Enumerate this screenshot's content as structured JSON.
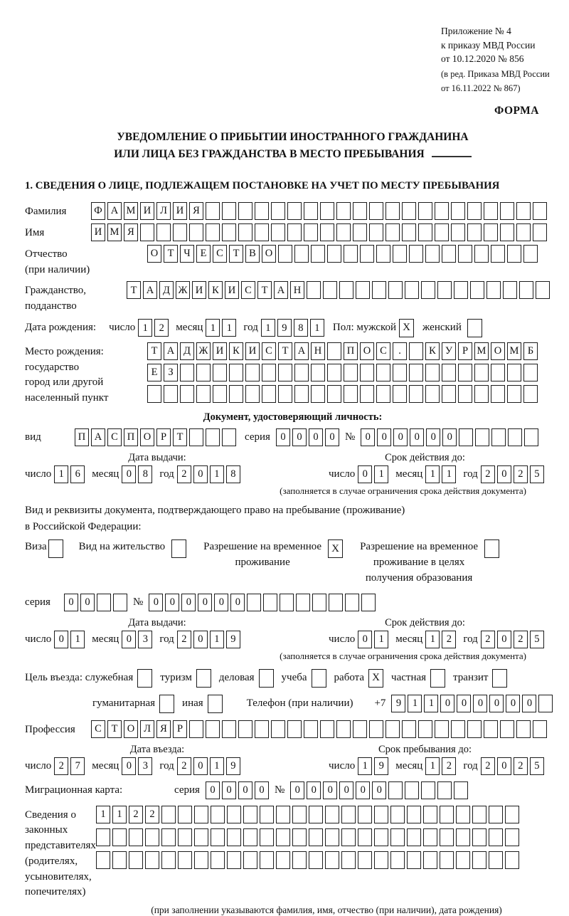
{
  "doc": {
    "appendix": [
      "Приложение № 4",
      "к приказу МВД России",
      "от 10.12.2020 № 856"
    ],
    "revision": [
      "(в ред. Приказа МВД России",
      "от 16.11.2022 № 867)"
    ],
    "form_label": "ФОРМА",
    "title1": "УВЕДОМЛЕНИЕ О ПРИБЫТИИ ИНОСТРАННОГО ГРАЖДАНИНА",
    "title2": "ИЛИ ЛИЦА БЕЗ ГРАЖДАНСТВА В МЕСТО ПРЕБЫВАНИЯ",
    "section1": "1. СВЕДЕНИЯ О ЛИЦЕ, ПОДЛЕЖАЩЕМ ПОСТАНОВКЕ НА УЧЕТ ПО МЕСТУ ПРЕБЫВАНИЯ"
  },
  "labels": {
    "surname": "Фамилия",
    "given_name": "Имя",
    "patronymic": "Отчество",
    "patronymic2": "(при наличии)",
    "citizenship": "Гражданство,",
    "citizenship2": "подданство",
    "birth_date": "Дата рождения:",
    "day": "число",
    "month": "месяц",
    "year": "год",
    "sex": "Пол: мужской",
    "female": "женский",
    "birth_place": "Место рождения:",
    "state": "государство",
    "city1": "город или другой",
    "city2": "населенный пункт",
    "identity_doc": "Документ, удостоверяющий личность:",
    "kind": "вид",
    "series": "серия",
    "number": "№",
    "issue_date": "Дата выдачи:",
    "valid_until": "Срок действия до:",
    "valid_note": "(заполняется в случае ограничения срока действия документа)",
    "right_doc1": "Вид и реквизиты документа, подтверждающего право на пребывание (проживание)",
    "right_doc2": "в Российской Федерации:",
    "visa": "Виза",
    "residence_permit": "Вид на жительство",
    "temp_res1": "Разрешение на временное",
    "temp_res2": "проживание",
    "temp_edu1": "Разрешение на временное",
    "temp_edu2": "проживание в целях",
    "temp_edu3": "получения образования",
    "purpose": "Цель въезда: служебная",
    "tourism": "туризм",
    "business": "деловая",
    "study": "учеба",
    "work": "работа",
    "private": "частная",
    "transit": "транзит",
    "humanitarian": "гуманитарная",
    "other": "иная",
    "phone": "Телефон (при наличии)",
    "phone_prefix": "+7",
    "profession": "Профессия",
    "entry_date": "Дата въезда:",
    "stay_until": "Срок пребывания до:",
    "migration_card": "Миграционная карта:",
    "guardians": [
      "Сведения о",
      "законных",
      "представителях",
      "(родителях,",
      "усыновителях,",
      "попечителях)"
    ],
    "guardians_note": "(при заполнении указываются фамилия, имя, отчество (при наличии), дата рождения)"
  },
  "values": {
    "surname": {
      "value": "ФАМИЛИЯ",
      "cells": 28
    },
    "given_name": {
      "value": "ИМЯ",
      "cells": 28
    },
    "patronymic": {
      "value": "ОТЧЕСТВО",
      "cells": 24
    },
    "citizenship": {
      "value": "ТАДЖИКИСТАН",
      "cells": 26
    },
    "birth": {
      "day": "12",
      "month": "11",
      "year": "1981"
    },
    "birthplace1": {
      "value": "ТАДЖИКИСТАН ПОС. КУРМОМБ",
      "cells": 24
    },
    "birthplace2": {
      "value": "ЕЗ",
      "cells": 24
    },
    "birthplace3": {
      "value": "",
      "cells": 24
    },
    "doc_kind": {
      "value": "ПАСПОРТ",
      "cells": 10
    },
    "doc_series": {
      "value": "0000",
      "cells": 4
    },
    "doc_number": {
      "value": "000000",
      "cells": 11
    },
    "doc_issue": {
      "day": "16",
      "month": "08",
      "year": "2018"
    },
    "doc_valid": {
      "day": "01",
      "month": "11",
      "year": "2025"
    },
    "permit_series": {
      "value": "00",
      "cells": 4
    },
    "permit_number": {
      "value": "000000",
      "cells": 14
    },
    "permit_issue": {
      "day": "01",
      "month": "03",
      "year": "2019"
    },
    "permit_valid": {
      "day": "01",
      "month": "12",
      "year": "2025"
    },
    "phone": {
      "value": "911000000",
      "cells": 10
    },
    "profession": {
      "value": "СТОЛЯР",
      "cells": 28
    },
    "entry": {
      "day": "27",
      "month": "03",
      "year": "2019"
    },
    "stay": {
      "day": "19",
      "month": "12",
      "year": "2025"
    },
    "mig_series": {
      "value": "0000",
      "cells": 4
    },
    "mig_number": {
      "value": "000000",
      "cells": 11
    },
    "guardians1": {
      "value": "1122",
      "cells": 26
    },
    "guardians2": {
      "value": "",
      "cells": 26
    },
    "guardians3": {
      "value": "",
      "cells": 26
    }
  },
  "checks": {
    "male": "X",
    "female": "",
    "visa": "",
    "residence_permit": "",
    "temp_res": "X",
    "temp_edu": "",
    "official": "",
    "tourism": "",
    "business": "",
    "study": "",
    "work": "X",
    "private": "",
    "transit": "",
    "humanitarian": "",
    "other": ""
  },
  "colors": {
    "ink": "#111111",
    "box_border": "#1c1c1c",
    "background": "#ffffff"
  }
}
